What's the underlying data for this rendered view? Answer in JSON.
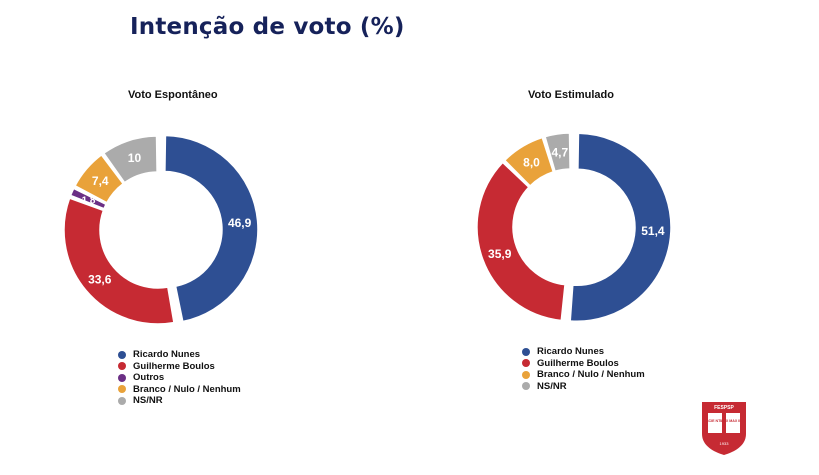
{
  "title": "Intenção de voto (%)",
  "chart_data": [
    {
      "type": "pie",
      "title": "Voto Espontâneo",
      "labels": [
        "Ricardo Nunes",
        "Guilherme Boulos",
        "Outros",
        "Branco / Nulo / Nenhum",
        "NS/NR"
      ],
      "values": [
        46.9,
        33.6,
        1.8,
        7.4,
        10
      ],
      "value_labels": [
        "46,9",
        "33,6",
        "1,8",
        "7,4",
        "10"
      ],
      "colors": [
        "#2e4f93",
        "#c62a33",
        "#6b2f85",
        "#e9a23a",
        "#ababab"
      ]
    },
    {
      "type": "pie",
      "title": "Voto Estimulado",
      "labels": [
        "Ricardo Nunes",
        "Guilherme Boulos",
        "Branco / Nulo / Nenhum",
        "NS/NR"
      ],
      "values": [
        51.4,
        35.9,
        8.0,
        4.7
      ],
      "value_labels": [
        "51,4",
        "35,9",
        "8,0",
        "4,7"
      ],
      "colors": [
        "#2e4f93",
        "#c62a33",
        "#e9a23a",
        "#ababab"
      ]
    }
  ],
  "seal": {
    "name": "FESPSP",
    "text_left": "SCIE NTIA",
    "text_right": "LUX MAX IMA",
    "year": "1933"
  }
}
